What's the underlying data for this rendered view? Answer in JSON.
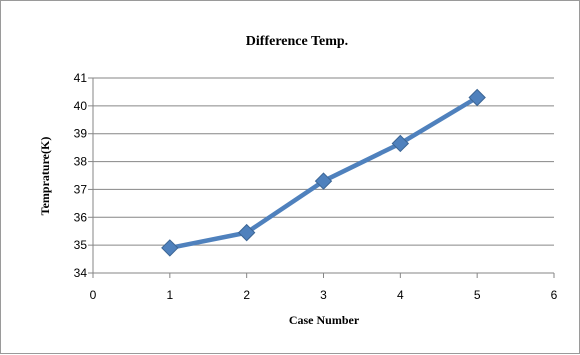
{
  "chart_data": {
    "type": "line",
    "title": "Difference Temp.",
    "xlabel": "Case Number",
    "ylabel": "Temprature(K)",
    "xlim": [
      0,
      6
    ],
    "ylim": [
      34,
      41
    ],
    "xticks": [
      "0",
      "1",
      "2",
      "3",
      "4",
      "5",
      "6"
    ],
    "yticks": [
      "34",
      "35",
      "36",
      "37",
      "38",
      "39",
      "40",
      "41"
    ],
    "grid": "horizontal",
    "legend": "none",
    "series": [
      {
        "x": [
          1,
          2,
          3,
          4,
          5
        ],
        "y": [
          34.9,
          35.45,
          37.3,
          38.65,
          40.3
        ],
        "color": "#4f81bd",
        "marker": "diamond"
      }
    ]
  }
}
